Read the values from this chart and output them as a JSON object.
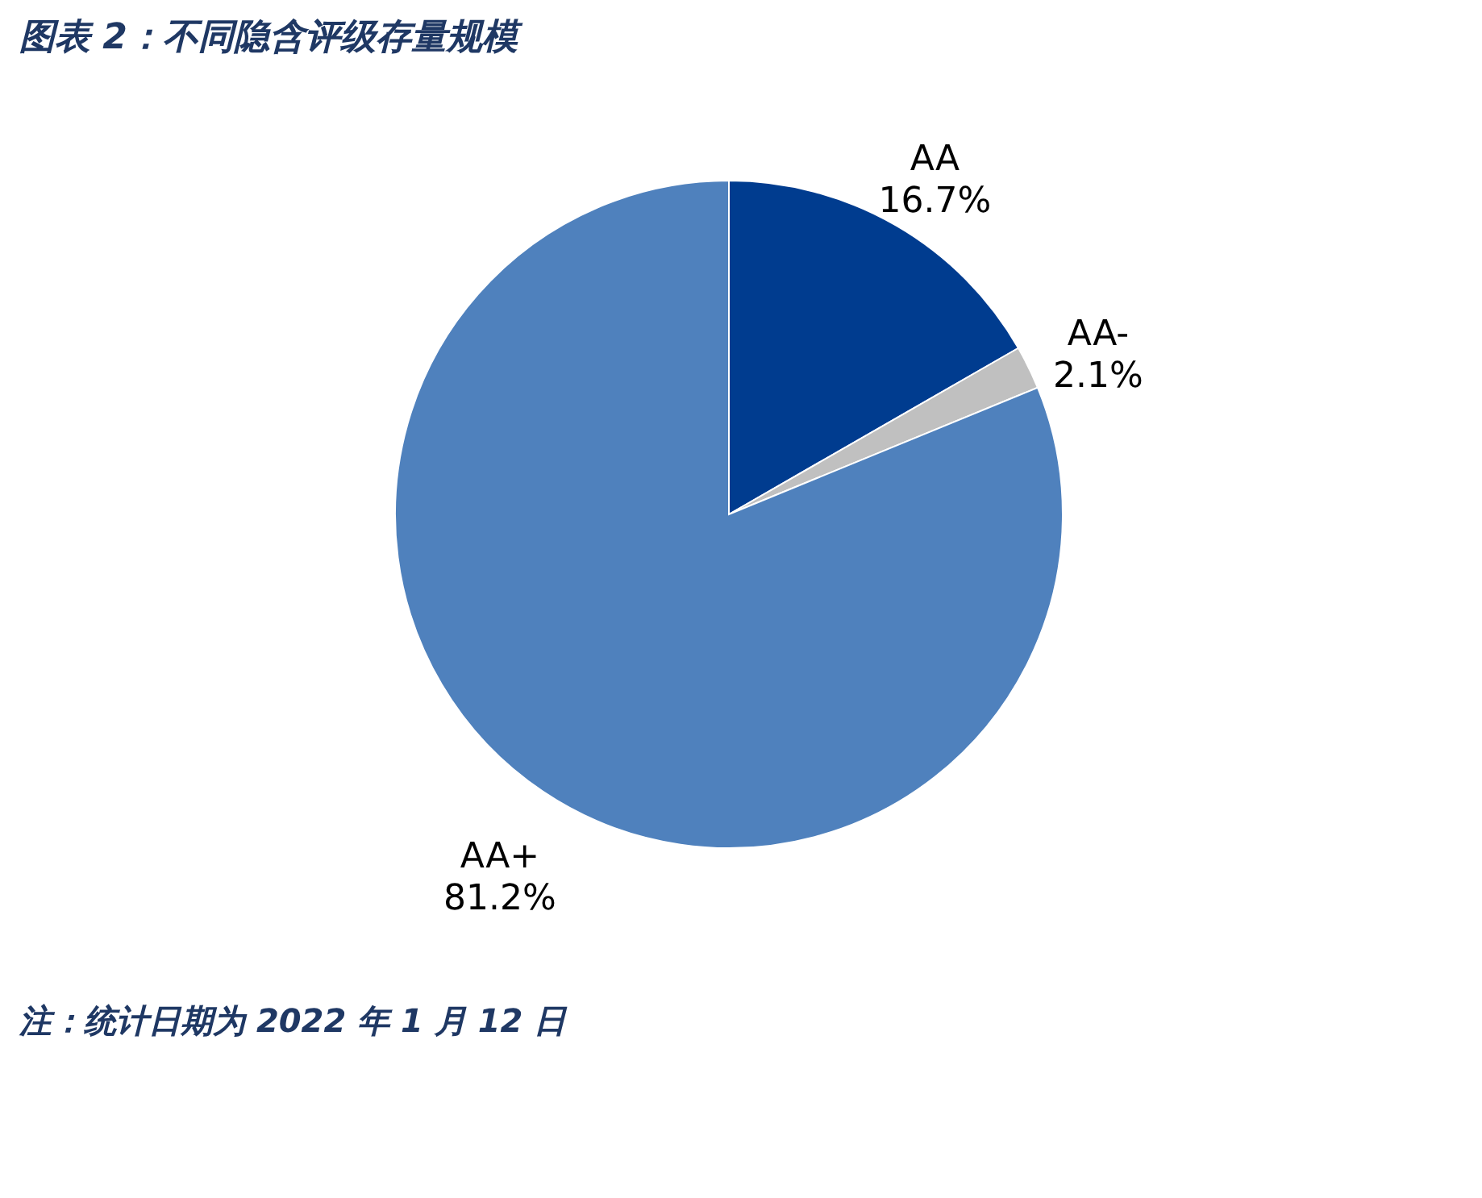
{
  "chart_data": {
    "type": "pie",
    "title": "图表 2：不同隐含评级存量规模",
    "categories": [
      "AA",
      "AA-",
      "AA+"
    ],
    "values": [
      16.7,
      2.1,
      81.2
    ],
    "value_labels": [
      "16.7%",
      "2.1%",
      "81.2%"
    ],
    "colors": [
      "#003c8f",
      "#c0c0c0",
      "#4f81bd"
    ],
    "legend": false,
    "annotations": [
      "注：统计日期为 2022 年 1 月 12 日"
    ]
  }
}
